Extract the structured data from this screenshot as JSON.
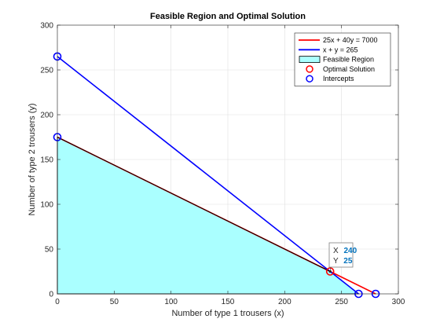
{
  "chart_data": {
    "type": "line",
    "title": "Feasible Region and Optimal Solution",
    "xlabel": "Number of type 1 trousers (x)",
    "ylabel": "Number of type 2 trousers (y)",
    "xlim": [
      0,
      300
    ],
    "ylim": [
      0,
      300
    ],
    "xticks": [
      0,
      50,
      100,
      150,
      200,
      250,
      300
    ],
    "yticks": [
      0,
      50,
      100,
      150,
      200,
      250,
      300
    ],
    "grid": true,
    "legend_position": "top-right",
    "colors": {
      "line1": "#ff0000",
      "line2": "#0000ff",
      "region_fill": "#aaffff",
      "region_edge": "#000000",
      "optimal": "#ff0000",
      "intercepts": "#0000ff",
      "datatip_value": "#0072bd"
    },
    "series": [
      {
        "name": "25x + 40y = 7000",
        "kind": "line",
        "x": [
          0,
          280
        ],
        "y": [
          175,
          0
        ]
      },
      {
        "name": "x + y = 265",
        "kind": "line",
        "x": [
          0,
          265
        ],
        "y": [
          265,
          0
        ]
      },
      {
        "name": "Feasible Region",
        "kind": "area",
        "x": [
          0,
          0,
          240,
          265
        ],
        "y": [
          0,
          175,
          25,
          0
        ]
      },
      {
        "name": "Optimal Solution",
        "kind": "marker",
        "x": [
          240
        ],
        "y": [
          25
        ]
      },
      {
        "name": "Intercepts",
        "kind": "marker",
        "x": [
          0,
          0,
          265,
          280
        ],
        "y": [
          175,
          265,
          0,
          0
        ]
      }
    ],
    "datatip": {
      "x_label": "X",
      "x_value": "240",
      "y_label": "Y",
      "y_value": "25"
    }
  }
}
